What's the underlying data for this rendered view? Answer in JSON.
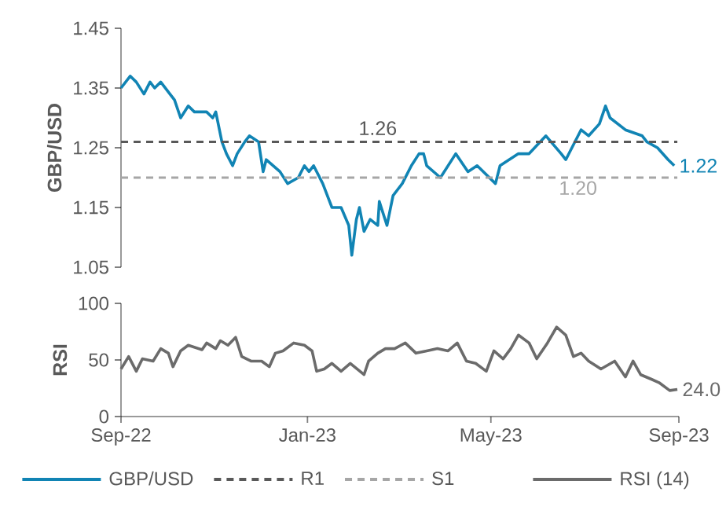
{
  "chart_data": [
    {
      "type": "line",
      "ylabel": "GBP/USD",
      "xlim": [
        "2022-09-01",
        "2023-09-01"
      ],
      "ylim": [
        1.05,
        1.45
      ],
      "yticks": [
        1.05,
        1.15,
        1.25,
        1.35,
        1.45
      ],
      "tick_labels": "y",
      "legend": "bottom",
      "series": [
        {
          "name": "GBP/USD",
          "color": "#1184b4",
          "line_style": "solid",
          "x": [
            "2022-09-01",
            "2022-09-07",
            "2022-09-11",
            "2022-09-16",
            "2022-09-20",
            "2022-09-23",
            "2022-09-27",
            "2022-10-03",
            "2022-10-06",
            "2022-10-10",
            "2022-10-15",
            "2022-10-19",
            "2022-10-27",
            "2022-10-31",
            "2022-11-02",
            "2022-11-06",
            "2022-11-09",
            "2022-11-13",
            "2022-11-16",
            "2022-11-21",
            "2022-11-24",
            "2022-11-30",
            "2022-12-03",
            "2022-12-05",
            "2022-12-14",
            "2022-12-19",
            "2022-12-26",
            "2022-12-30",
            "2023-01-02",
            "2023-01-05",
            "2023-01-11",
            "2023-01-17",
            "2023-01-23",
            "2023-01-28",
            "2023-01-30",
            "2023-02-02",
            "2023-02-04",
            "2023-02-07",
            "2023-02-11",
            "2023-02-16",
            "2023-02-17",
            "2023-02-22",
            "2023-02-26",
            "2023-03-04",
            "2023-03-10",
            "2023-03-15",
            "2023-03-18",
            "2023-03-20",
            "2023-03-29",
            "2023-04-08",
            "2023-04-16",
            "2023-04-22",
            "2023-05-04",
            "2023-05-07",
            "2023-05-19",
            "2023-05-26",
            "2023-06-06",
            "2023-06-16",
            "2023-06-19",
            "2023-06-29",
            "2023-07-04",
            "2023-07-11",
            "2023-07-15",
            "2023-07-18",
            "2023-07-28",
            "2023-08-08",
            "2023-08-11",
            "2023-08-18",
            "2023-08-25",
            "2023-08-29"
          ],
          "values": [
            1.35,
            1.37,
            1.36,
            1.34,
            1.36,
            1.35,
            1.36,
            1.34,
            1.33,
            1.3,
            1.32,
            1.31,
            1.31,
            1.3,
            1.31,
            1.26,
            1.24,
            1.22,
            1.24,
            1.26,
            1.27,
            1.26,
            1.21,
            1.23,
            1.21,
            1.19,
            1.2,
            1.22,
            1.21,
            1.22,
            1.19,
            1.15,
            1.15,
            1.12,
            1.07,
            1.13,
            1.15,
            1.11,
            1.13,
            1.12,
            1.16,
            1.12,
            1.17,
            1.19,
            1.22,
            1.24,
            1.24,
            1.22,
            1.2,
            1.24,
            1.21,
            1.22,
            1.19,
            1.22,
            1.24,
            1.24,
            1.27,
            1.24,
            1.23,
            1.28,
            1.27,
            1.29,
            1.32,
            1.3,
            1.28,
            1.27,
            1.26,
            1.25,
            1.23,
            1.22
          ],
          "value_labels": [
            null,
            null,
            null,
            null,
            null,
            null,
            null,
            null,
            null,
            null,
            null,
            null,
            null,
            null,
            null,
            null,
            null,
            null,
            null,
            null,
            null,
            null,
            null,
            null,
            null,
            null,
            null,
            null,
            null,
            null,
            null,
            null,
            null,
            null,
            null,
            null,
            null,
            null,
            null,
            null,
            null,
            null,
            null,
            null,
            null,
            null,
            null,
            null,
            null,
            null,
            null,
            null,
            null,
            null,
            null,
            null,
            null,
            null,
            null,
            null,
            null,
            null,
            null,
            null,
            null,
            null,
            null,
            null,
            null,
            "1.22"
          ]
        },
        {
          "name": "R1",
          "color": "#595959",
          "line_style": "dashed",
          "x": [
            "2022-09-01",
            "2023-02-16",
            "2023-08-31"
          ],
          "values": [
            1.26,
            1.26,
            1.26
          ],
          "value_labels": [
            null,
            "1.26",
            null
          ]
        },
        {
          "name": "S1",
          "color": "#a6a6a6",
          "line_style": "dashed",
          "x": [
            "2022-09-01",
            "2023-06-27",
            "2023-08-31"
          ],
          "values": [
            1.2,
            1.2,
            1.2
          ],
          "value_labels": [
            null,
            "1.20",
            null
          ]
        }
      ]
    },
    {
      "type": "line",
      "ylabel": "RSI",
      "xlim": [
        "2022-09-01",
        "2023-09-01"
      ],
      "ylim": [
        0,
        100
      ],
      "yticks": [
        0,
        50,
        100
      ],
      "legend": "bottom",
      "xticks": [
        {
          "value": "2022-09-01",
          "label": "Sep-22"
        },
        {
          "value": "2023-01-01",
          "label": "Jan-23"
        },
        {
          "value": "2023-05-01",
          "label": "May-23"
        },
        {
          "value": "2023-09-01",
          "label": "Sep-23"
        }
      ],
      "series": [
        {
          "name": "RSI (14)",
          "color": "#6b6b6b",
          "line_style": "solid",
          "x": [
            "2022-09-01",
            "2022-09-06",
            "2022-09-11",
            "2022-09-15",
            "2022-09-22",
            "2022-09-27",
            "2022-10-02",
            "2022-10-05",
            "2022-10-10",
            "2022-10-15",
            "2022-10-24",
            "2022-10-27",
            "2022-11-02",
            "2022-11-05",
            "2022-11-10",
            "2022-11-15",
            "2022-11-19",
            "2022-11-25",
            "2022-12-02",
            "2022-12-07",
            "2022-12-11",
            "2022-12-16",
            "2022-12-23",
            "2022-12-30",
            "2023-01-04",
            "2023-01-07",
            "2023-01-12",
            "2023-01-17",
            "2023-01-23",
            "2023-01-29",
            "2023-02-07",
            "2023-02-10",
            "2023-02-16",
            "2023-02-21",
            "2023-02-27",
            "2023-03-06",
            "2023-03-13",
            "2023-03-20",
            "2023-03-27",
            "2023-04-03",
            "2023-04-09",
            "2023-04-15",
            "2023-04-21",
            "2023-04-28",
            "2023-05-03",
            "2023-05-09",
            "2023-05-14",
            "2023-05-19",
            "2023-05-26",
            "2023-05-31",
            "2023-06-07",
            "2023-06-13",
            "2023-06-19",
            "2023-06-24",
            "2023-06-29",
            "2023-07-04",
            "2023-07-12",
            "2023-07-21",
            "2023-07-28",
            "2023-08-02",
            "2023-08-07",
            "2023-08-14",
            "2023-08-19",
            "2023-08-26",
            "2023-08-31"
          ],
          "values": [
            42,
            53,
            40,
            51,
            49,
            60,
            56,
            44,
            58,
            63,
            59,
            65,
            60,
            67,
            63,
            70,
            53,
            49,
            49,
            44,
            56,
            58,
            65,
            63,
            58,
            40,
            42,
            47,
            40,
            47,
            37,
            49,
            56,
            60,
            60,
            65,
            56,
            58,
            60,
            58,
            65,
            49,
            47,
            40,
            58,
            51,
            60,
            72,
            65,
            51,
            65,
            79,
            72,
            53,
            56,
            49,
            42,
            49,
            35,
            49,
            37,
            33,
            30,
            23,
            24
          ],
          "value_labels": [
            null,
            null,
            null,
            null,
            null,
            null,
            null,
            null,
            null,
            null,
            null,
            null,
            null,
            null,
            null,
            null,
            null,
            null,
            null,
            null,
            null,
            null,
            null,
            null,
            null,
            null,
            null,
            null,
            null,
            null,
            null,
            null,
            null,
            null,
            null,
            null,
            null,
            null,
            null,
            null,
            null,
            null,
            null,
            null,
            null,
            null,
            null,
            null,
            null,
            null,
            null,
            null,
            null,
            null,
            null,
            null,
            null,
            null,
            null,
            null,
            null,
            null,
            null,
            null,
            "24.0"
          ]
        }
      ]
    }
  ]
}
